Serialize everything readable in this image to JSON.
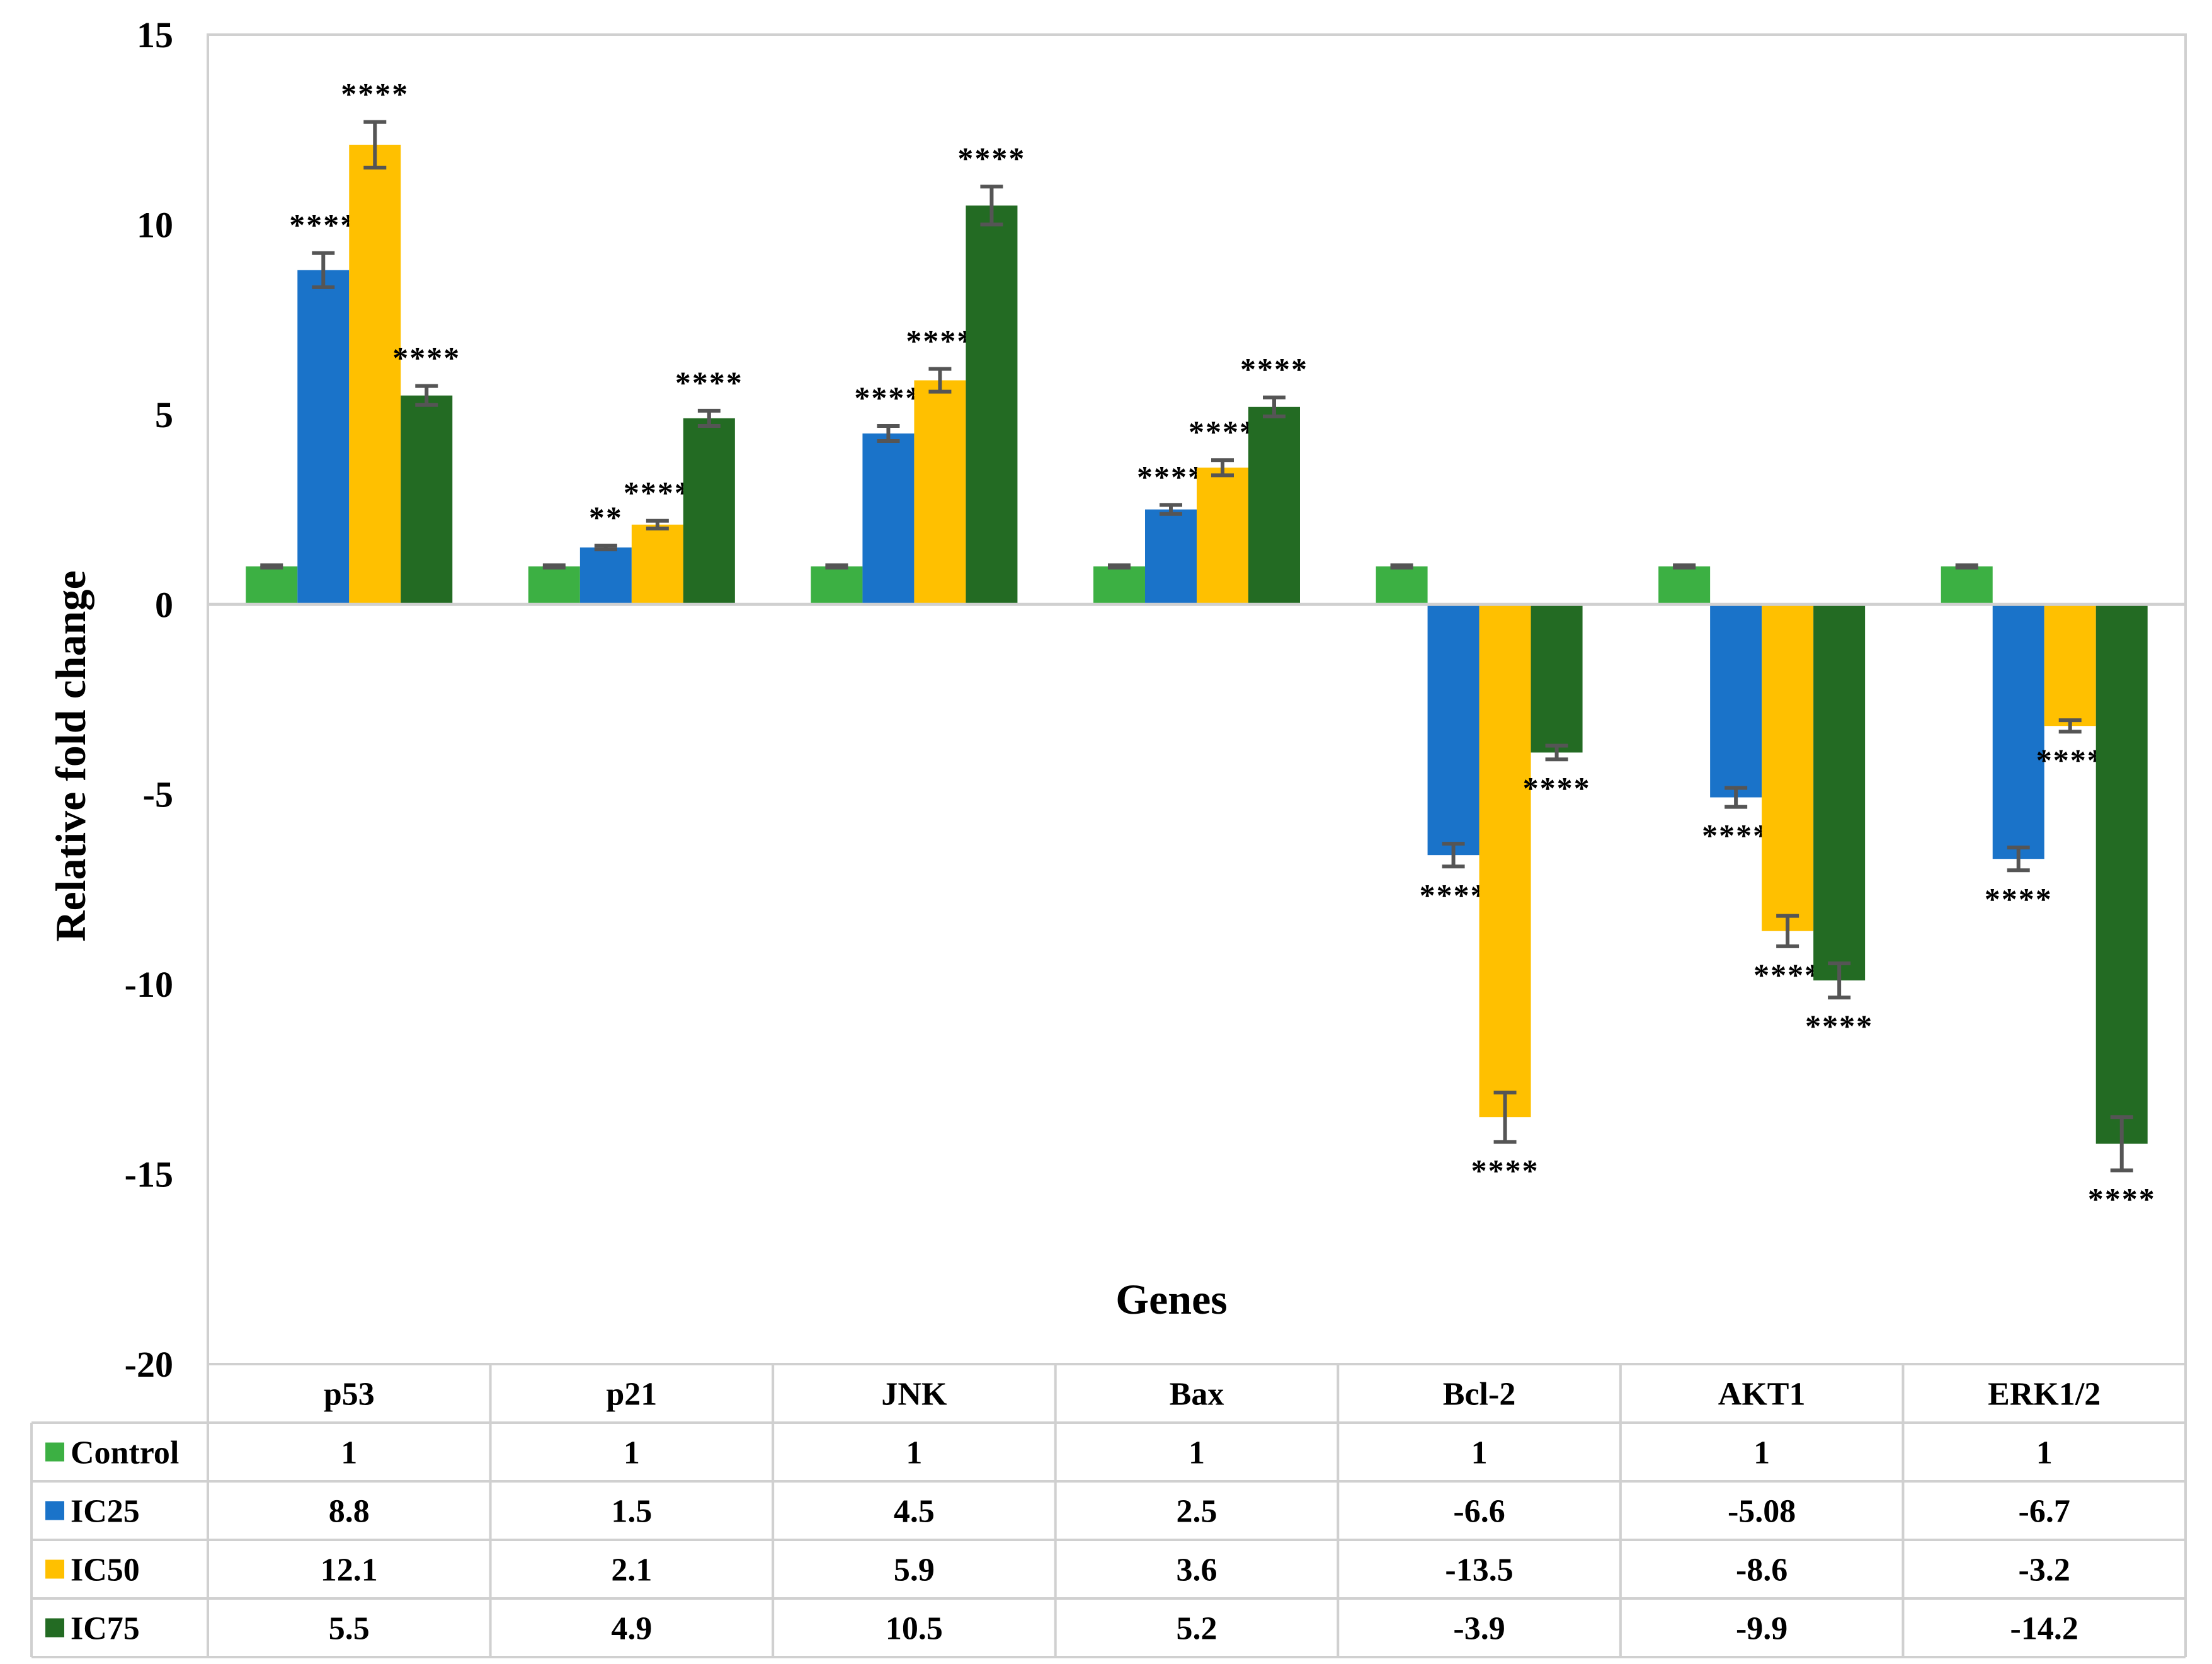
{
  "chart_data": {
    "type": "bar",
    "title": "",
    "xlabel": "Genes",
    "ylabel": "Relative fold change",
    "ylim": [
      -20,
      15
    ],
    "yticks": [
      15,
      10,
      5,
      0,
      -5,
      -10,
      -15,
      -20
    ],
    "categories": [
      "p53",
      "p21",
      "JNK",
      "Bax",
      "Bcl-2",
      "AKT1",
      "ERK1/2"
    ],
    "series": [
      {
        "name": "Control",
        "color": "#3cb043",
        "values": [
          1,
          1,
          1,
          1,
          1,
          1,
          1
        ],
        "table_values": [
          "1",
          "1",
          "1",
          "1",
          "1",
          "1",
          "1"
        ],
        "errors": [
          0.03,
          0.03,
          0.03,
          0.03,
          0.03,
          0.03,
          0.03
        ],
        "significance": [
          "",
          "",
          "",
          "",
          "",
          "",
          ""
        ]
      },
      {
        "name": "IC25",
        "color": "#1a73c9",
        "values": [
          8.8,
          1.5,
          4.5,
          2.5,
          -6.6,
          -5.08,
          -6.7
        ],
        "table_values": [
          "8.8",
          "1.5",
          "4.5",
          "2.5",
          "-6.6",
          "-5.08",
          "-6.7"
        ],
        "errors": [
          0.45,
          0.05,
          0.2,
          0.12,
          0.3,
          0.25,
          0.3
        ],
        "significance": [
          "****",
          "**",
          "****",
          "****",
          "****",
          "****",
          "****"
        ]
      },
      {
        "name": "IC50",
        "color": "#ffc000",
        "values": [
          12.1,
          2.1,
          5.9,
          3.6,
          -13.5,
          -8.6,
          -3.2
        ],
        "table_values": [
          "12.1",
          "2.1",
          "5.9",
          "3.6",
          "-13.5",
          "-8.6",
          "-3.2"
        ],
        "errors": [
          0.6,
          0.1,
          0.3,
          0.2,
          0.65,
          0.4,
          0.15
        ],
        "significance": [
          "****",
          "****",
          "****",
          "****",
          "****",
          "****",
          "****"
        ]
      },
      {
        "name": "IC75",
        "color": "#236b23",
        "values": [
          5.5,
          4.9,
          10.5,
          5.2,
          -3.9,
          -9.9,
          -14.2
        ],
        "table_values": [
          "5.5",
          "4.9",
          "10.5",
          "5.2",
          "-3.9",
          "-9.9",
          "-14.2"
        ],
        "errors": [
          0.25,
          0.2,
          0.5,
          0.25,
          0.18,
          0.45,
          0.7
        ],
        "significance": [
          "****",
          "****",
          "****",
          "****",
          "****",
          "****",
          "****"
        ]
      }
    ],
    "legend": "data table (left column)",
    "grid": false
  }
}
